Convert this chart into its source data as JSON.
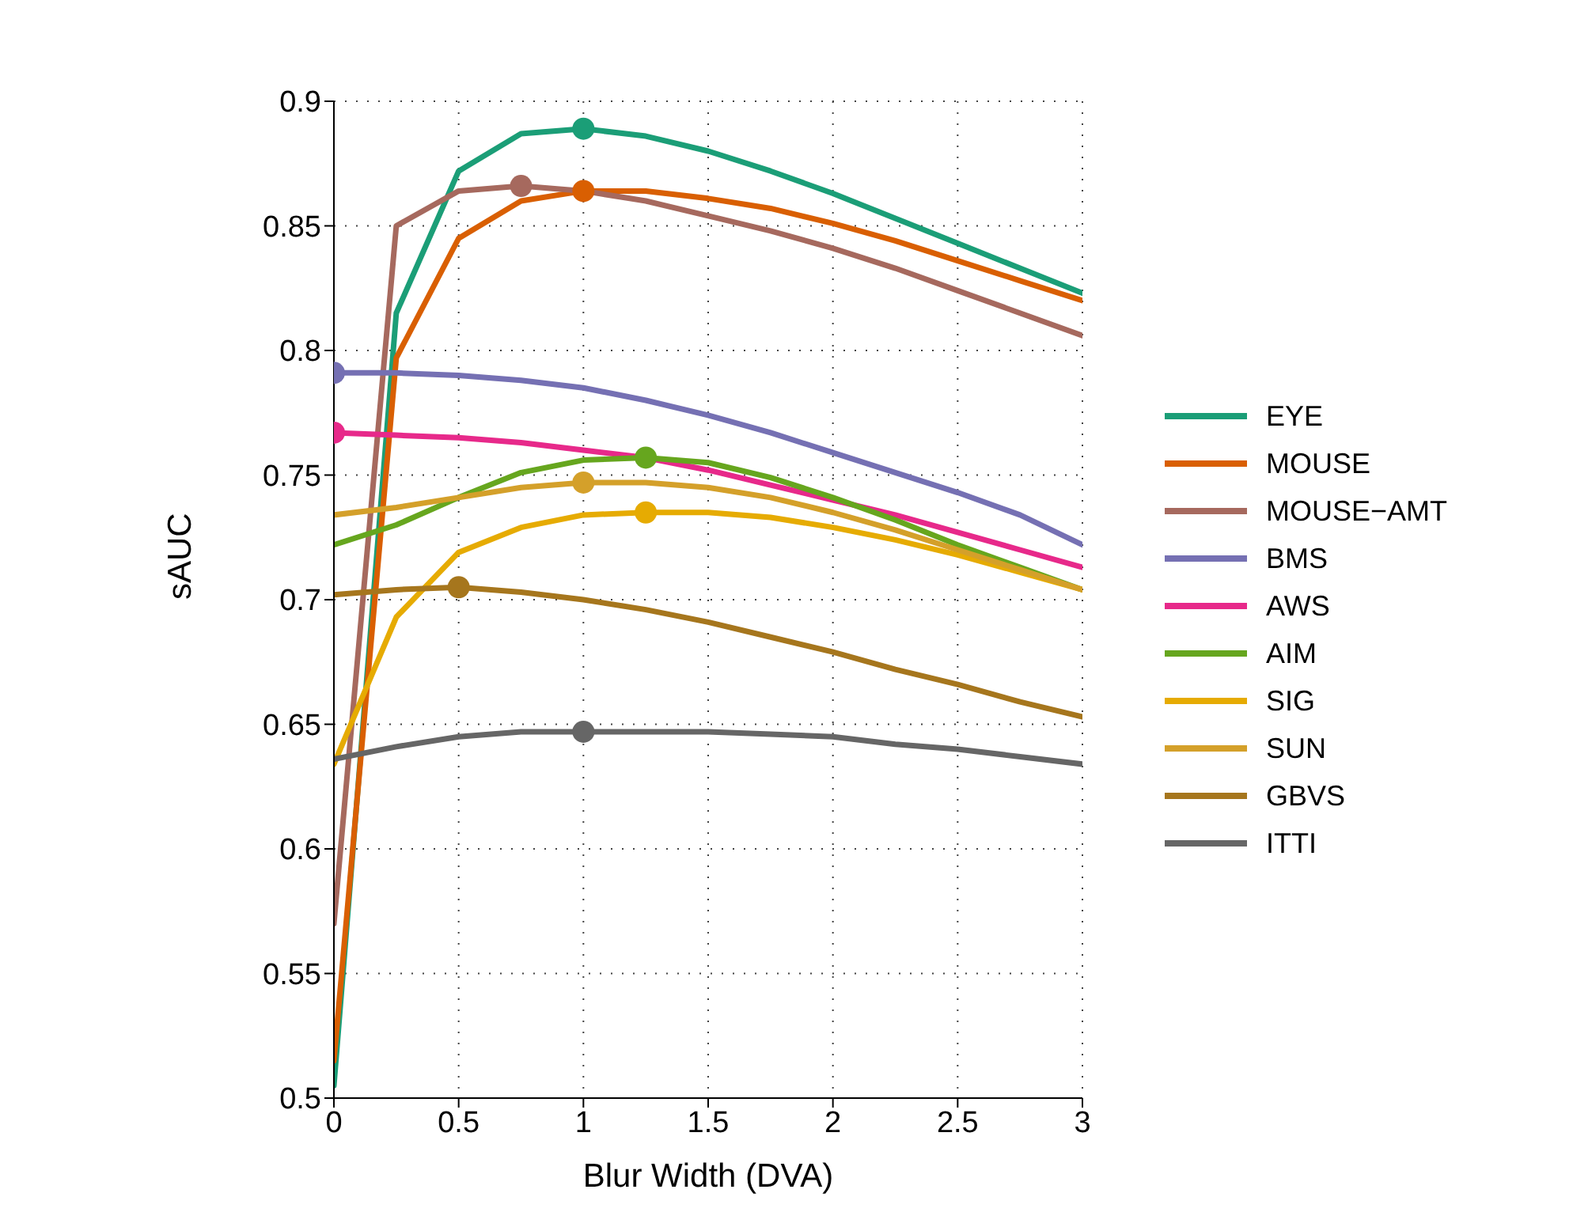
{
  "chart_data": {
    "type": "line",
    "xlabel": "Blur Width (DVA)",
    "ylabel": "sAUC",
    "x": [
      0,
      0.25,
      0.5,
      0.75,
      1,
      1.25,
      1.5,
      1.75,
      2,
      2.25,
      2.5,
      2.75,
      3
    ],
    "xlim": [
      0,
      3
    ],
    "xticks": [
      0,
      0.5,
      1,
      1.5,
      2,
      2.5,
      3
    ],
    "ylim": [
      0.5,
      0.9
    ],
    "yticks": [
      0.5,
      0.55,
      0.6,
      0.65,
      0.7,
      0.75,
      0.8,
      0.85,
      0.9
    ],
    "grid": true,
    "legend": "right",
    "marker": "none",
    "line_style": "solid",
    "series": [
      {
        "name": "EYE",
        "color": "#1b9e77",
        "values": [
          0.505,
          0.815,
          0.872,
          0.887,
          0.889,
          0.886,
          0.88,
          0.872,
          0.863,
          0.853,
          0.843,
          0.833,
          0.823
        ]
      },
      {
        "name": "MOUSE",
        "color": "#d95f02",
        "values": [
          0.515,
          0.797,
          0.845,
          0.86,
          0.864,
          0.864,
          0.861,
          0.857,
          0.851,
          0.844,
          0.836,
          0.828,
          0.82
        ]
      },
      {
        "name": "MOUSE−AMT",
        "color": "#a6695e",
        "values": [
          0.57,
          0.85,
          0.864,
          0.866,
          0.864,
          0.86,
          0.854,
          0.848,
          0.841,
          0.833,
          0.824,
          0.815,
          0.806
        ]
      },
      {
        "name": "BMS",
        "color": "#7570b3",
        "values": [
          0.791,
          0.791,
          0.79,
          0.788,
          0.785,
          0.78,
          0.774,
          0.767,
          0.759,
          0.751,
          0.743,
          0.734,
          0.722
        ]
      },
      {
        "name": "AWS",
        "color": "#e7298a",
        "values": [
          0.767,
          0.766,
          0.765,
          0.763,
          0.76,
          0.757,
          0.752,
          0.746,
          0.74,
          0.734,
          0.727,
          0.72,
          0.713
        ]
      },
      {
        "name": "AIM",
        "color": "#66a61e",
        "values": [
          0.722,
          0.73,
          0.741,
          0.751,
          0.756,
          0.757,
          0.755,
          0.749,
          0.741,
          0.732,
          0.722,
          0.713,
          0.704
        ]
      },
      {
        "name": "SIG",
        "color": "#e6ab02",
        "values": [
          0.634,
          0.693,
          0.719,
          0.729,
          0.734,
          0.735,
          0.735,
          0.733,
          0.729,
          0.724,
          0.718,
          0.711,
          0.704
        ]
      },
      {
        "name": "SUN",
        "color": "#d4a02a",
        "values": [
          0.734,
          0.737,
          0.741,
          0.745,
          0.747,
          0.747,
          0.745,
          0.741,
          0.735,
          0.728,
          0.72,
          0.712,
          0.704
        ]
      },
      {
        "name": "GBVS",
        "color": "#a6761d",
        "values": [
          0.702,
          0.704,
          0.705,
          0.703,
          0.7,
          0.696,
          0.691,
          0.685,
          0.679,
          0.672,
          0.666,
          0.659,
          0.653
        ]
      },
      {
        "name": "ITTI",
        "color": "#666666",
        "values": [
          0.636,
          0.641,
          0.645,
          0.647,
          0.647,
          0.647,
          0.647,
          0.646,
          0.645,
          0.642,
          0.64,
          0.637,
          0.634
        ]
      },
      {
        "type": "scatter",
        "marker": "circle",
        "color": "#1b9e77",
        "x": [
          1
        ],
        "values": [
          0.889
        ]
      },
      {
        "type": "scatter",
        "marker": "circle",
        "color": "#d95f02",
        "x": [
          1
        ],
        "values": [
          0.864
        ]
      },
      {
        "type": "scatter",
        "marker": "circle",
        "color": "#a6695e",
        "x": [
          0.75
        ],
        "values": [
          0.866
        ]
      },
      {
        "type": "scatter",
        "marker": "circle",
        "color": "#7570b3",
        "x": [
          0
        ],
        "values": [
          0.791
        ]
      },
      {
        "type": "scatter",
        "marker": "circle",
        "color": "#e7298a",
        "x": [
          0
        ],
        "values": [
          0.767
        ]
      },
      {
        "type": "scatter",
        "marker": "circle",
        "color": "#66a61e",
        "x": [
          1.25
        ],
        "values": [
          0.757
        ]
      },
      {
        "type": "scatter",
        "marker": "circle",
        "color": "#e6ab02",
        "x": [
          1.25
        ],
        "values": [
          0.735
        ]
      },
      {
        "type": "scatter",
        "marker": "circle",
        "color": "#d4a02a",
        "x": [
          1
        ],
        "values": [
          0.747
        ]
      },
      {
        "type": "scatter",
        "marker": "circle",
        "color": "#a6761d",
        "x": [
          0.5
        ],
        "values": [
          0.705
        ]
      },
      {
        "type": "scatter",
        "marker": "circle",
        "color": "#666666",
        "x": [
          1
        ],
        "values": [
          0.647
        ]
      }
    ]
  }
}
